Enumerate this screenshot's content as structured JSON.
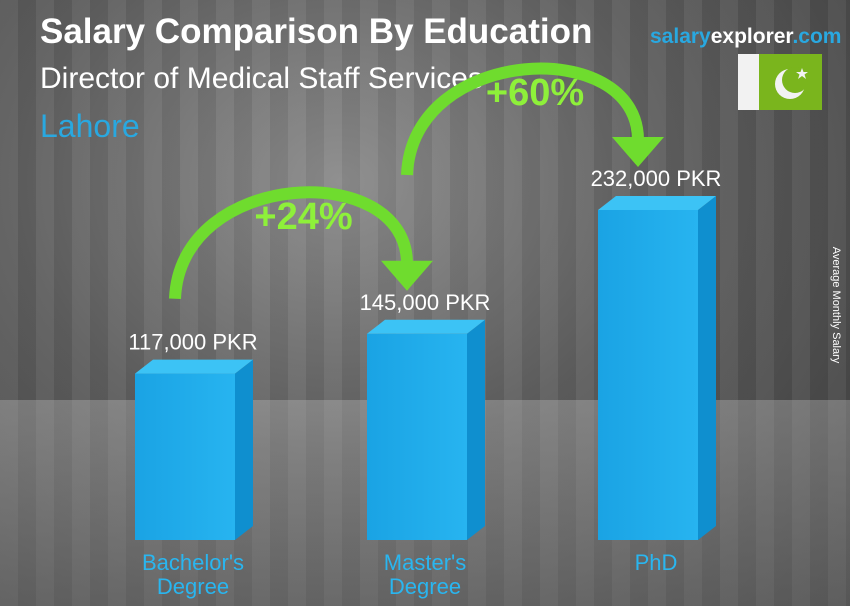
{
  "title": "Salary Comparison By Education",
  "subtitle": "Director of Medical Staff Services",
  "city": "Lahore",
  "brand": {
    "part1": "salary",
    "part2": "explorer",
    "part3": ".com"
  },
  "flag": "pakistan-flag",
  "colors": {
    "bar": "#1fa9e6",
    "accent_text": "#29a8e0",
    "arrow": "#7ee03a"
  },
  "chart_data": {
    "type": "bar",
    "categories": [
      [
        "Bachelor's",
        "Degree"
      ],
      [
        "Master's",
        "Degree"
      ],
      [
        "PhD"
      ]
    ],
    "values": [
      117000,
      145000,
      232000
    ],
    "value_labels": [
      "117,000 PKR",
      "145,000 PKR",
      "232,000 PKR"
    ],
    "ylabel": "Average Monthly Salary",
    "changes": [
      {
        "from": 0,
        "to": 1,
        "label": "+24%"
      },
      {
        "from": 1,
        "to": 2,
        "label": "+60%"
      }
    ]
  }
}
